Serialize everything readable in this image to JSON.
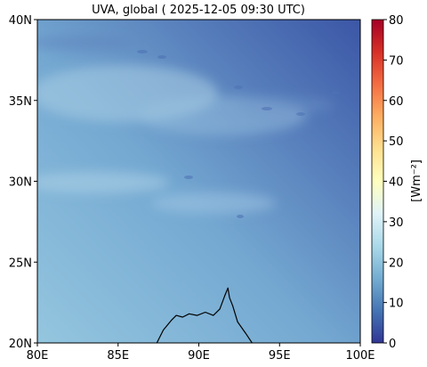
{
  "chart_data": {
    "type": "heatmap",
    "title": "UVA, global ( 2025-12-05 09:30 UTC)",
    "x": {
      "ticks": [
        80,
        85,
        90,
        95,
        100
      ],
      "tick_labels": [
        "80E",
        "85E",
        "90E",
        "95E",
        "100E"
      ],
      "range": [
        80,
        100
      ]
    },
    "y": {
      "ticks": [
        20,
        25,
        30,
        35,
        40
      ],
      "tick_labels": [
        "20N",
        "25N",
        "30N",
        "35N",
        "40N"
      ],
      "range": [
        20,
        40
      ]
    },
    "colorbar": {
      "label": "[Wm⁻²]",
      "range": [
        0,
        80
      ],
      "ticks": [
        0,
        10,
        20,
        30,
        40,
        50,
        60,
        70,
        80
      ],
      "tick_labels": [
        "0",
        "10",
        "20",
        "30",
        "40",
        "50",
        "60",
        "70",
        "80"
      ],
      "colormap": "RdYlBu_r"
    },
    "field_value_range": [
      7,
      20
    ],
    "coastline": [
      [
        87.4,
        20.0
      ],
      [
        87.8,
        20.8
      ],
      [
        88.3,
        21.4
      ],
      [
        88.6,
        21.7
      ],
      [
        89.0,
        21.6
      ],
      [
        89.4,
        21.8
      ],
      [
        89.9,
        21.7
      ],
      [
        90.4,
        21.9
      ],
      [
        90.9,
        21.7
      ],
      [
        91.3,
        22.1
      ],
      [
        91.6,
        22.9
      ],
      [
        91.8,
        23.4
      ],
      [
        91.9,
        22.8
      ],
      [
        92.1,
        22.3
      ],
      [
        92.4,
        21.3
      ],
      [
        92.9,
        20.6
      ],
      [
        93.3,
        20.0
      ]
    ]
  }
}
